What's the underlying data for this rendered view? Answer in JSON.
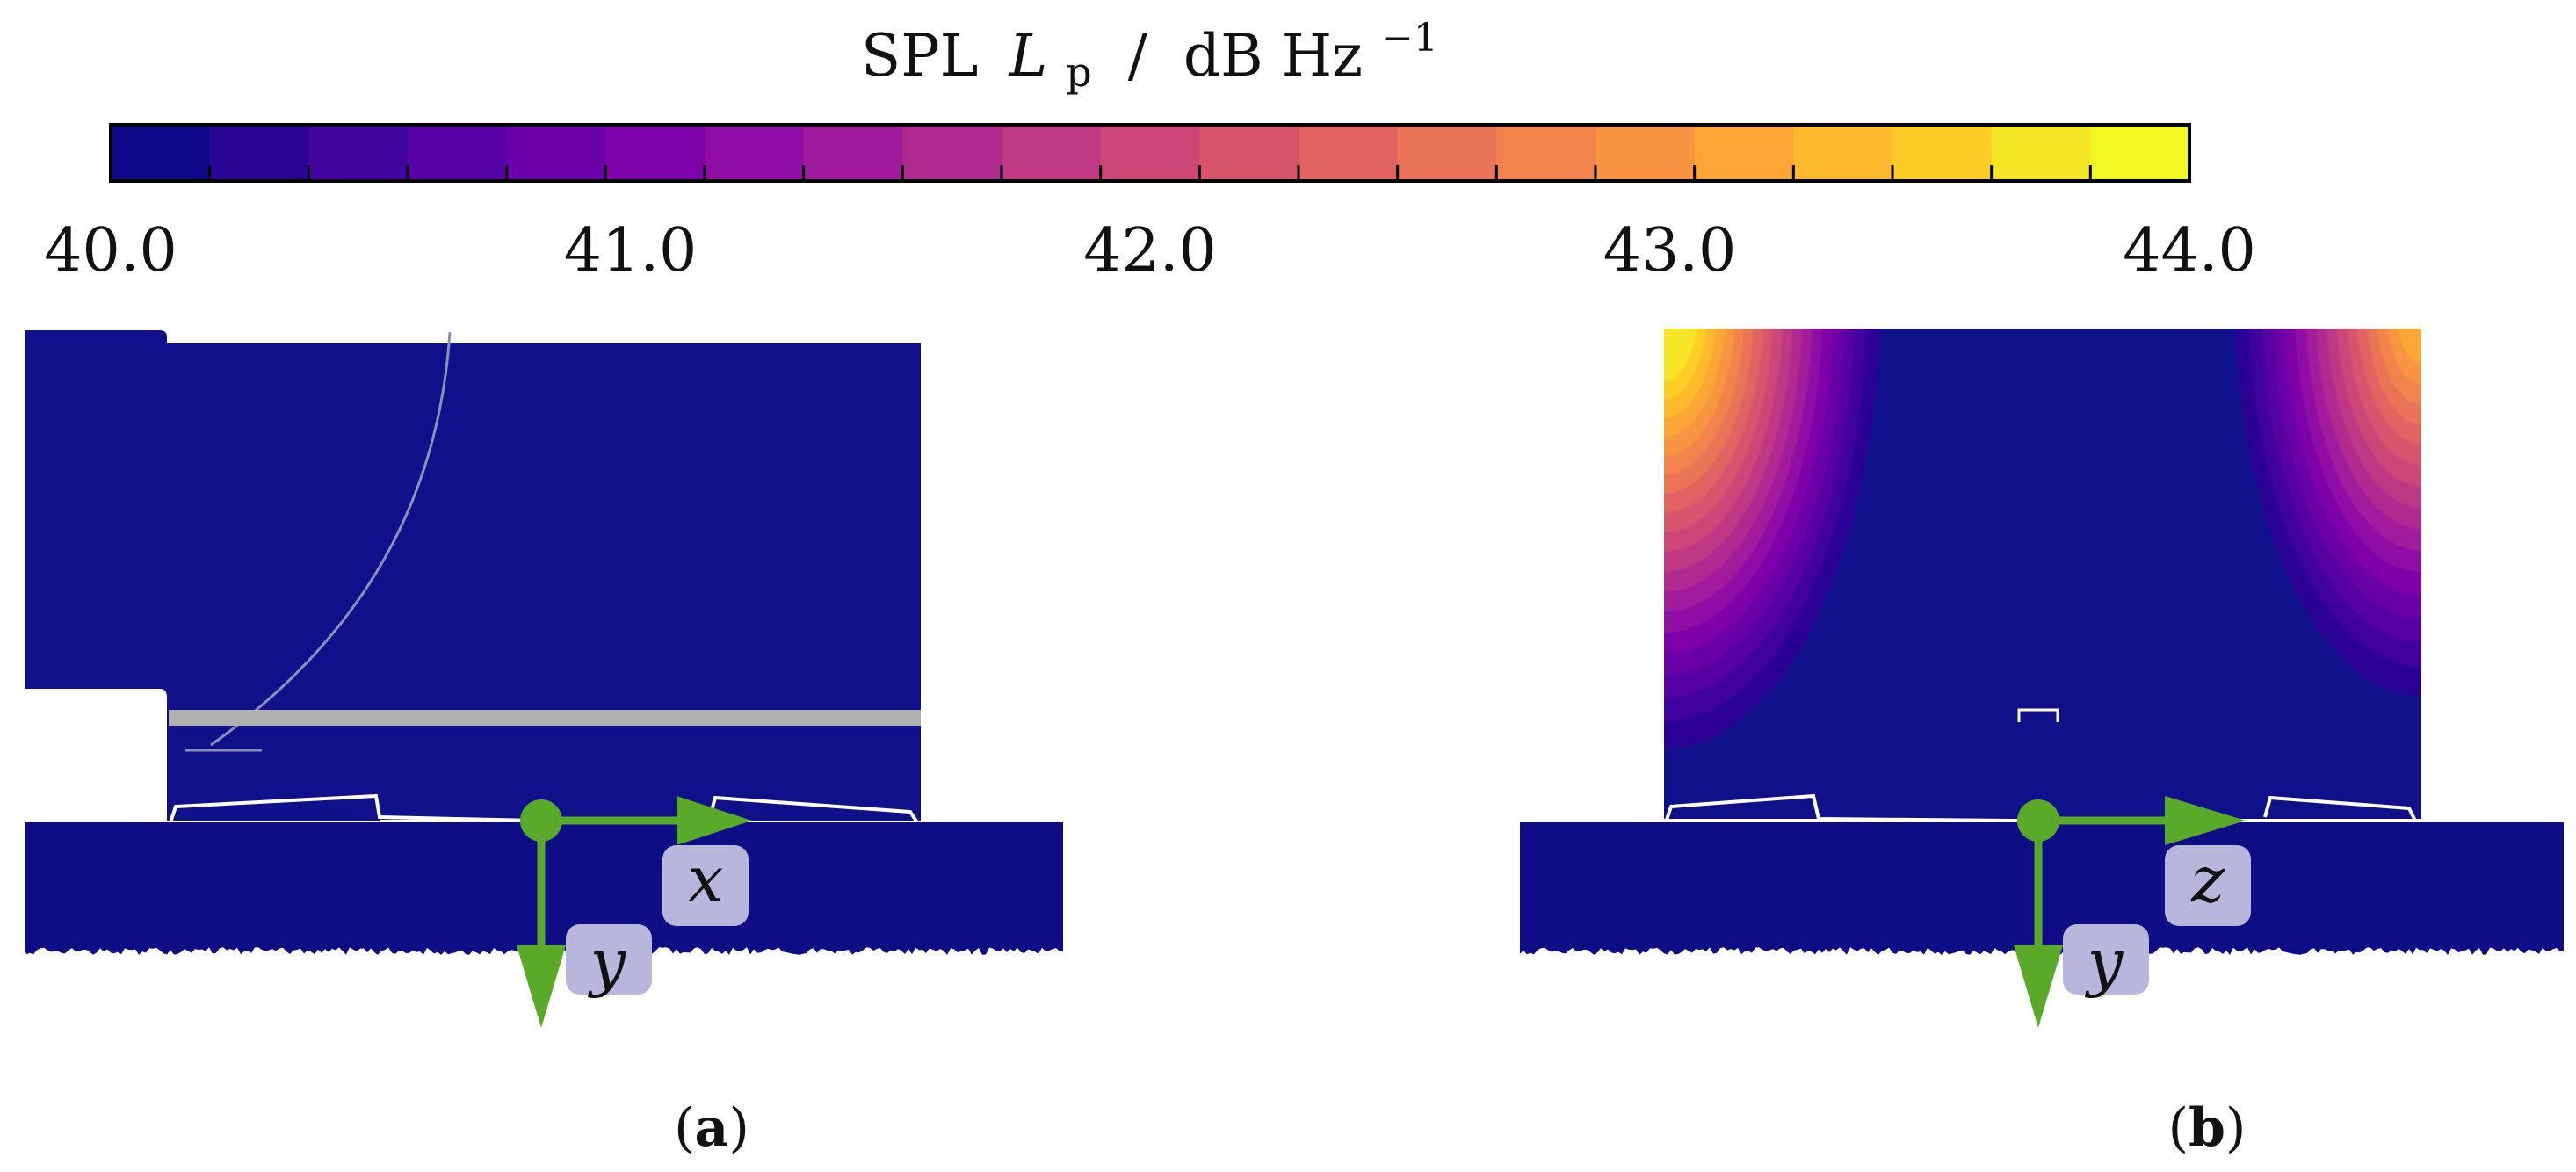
{
  "colorbar": {
    "title_main": "SPL",
    "title_symbol": "L",
    "title_subscript": "p",
    "title_sep": "/",
    "title_unit": "dB Hz",
    "title_exponent": "−1",
    "min": 40.0,
    "max": 44.0,
    "ticks": [
      "40.0",
      "41.0",
      "42.0",
      "43.0",
      "44.0"
    ],
    "levels": [
      "#0c0786",
      "#2a0594",
      "#41049d",
      "#5601a4",
      "#6a00a8",
      "#7e03a8",
      "#8f0da4",
      "#a01a9c",
      "#b12a90",
      "#bf3984",
      "#cc4778",
      "#d6556d",
      "#e16462",
      "#ea7457",
      "#f2844b",
      "#f89540",
      "#fca636",
      "#feba2c",
      "#fcce25",
      "#f5e626",
      "#f0f921"
    ]
  },
  "panels": {
    "a": {
      "label": "(a)",
      "letter": "a",
      "axis_h": "x",
      "axis_v": "y"
    },
    "b": {
      "label": "(b)",
      "letter": "b",
      "axis_h": "z",
      "axis_v": "y"
    }
  },
  "colors": {
    "field": "#10118a",
    "ground": "#0e0d86",
    "arrow": "#5aaa2a",
    "badge": "#b7b6dc",
    "wall": "#b0b0b0"
  }
}
